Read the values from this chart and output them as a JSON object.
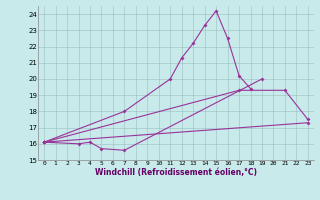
{
  "xlabel": "Windchill (Refroidissement éolien,°C)",
  "bg_color": "#c8eaea",
  "line_color": "#993399",
  "xlim": [
    -0.5,
    23.5
  ],
  "ylim": [
    15,
    24.5
  ],
  "yticks": [
    15,
    16,
    17,
    18,
    19,
    20,
    21,
    22,
    23,
    24
  ],
  "xticks": [
    0,
    1,
    2,
    3,
    4,
    5,
    6,
    7,
    8,
    9,
    10,
    11,
    12,
    13,
    14,
    15,
    16,
    17,
    18,
    19,
    20,
    21,
    22,
    23
  ],
  "series": [
    {
      "x": [
        0,
        7,
        11,
        12,
        13,
        14,
        15,
        16,
        17,
        18
      ],
      "y": [
        16.1,
        18.0,
        20.0,
        21.3,
        22.2,
        23.3,
        24.2,
        22.5,
        20.2,
        19.4
      ]
    },
    {
      "x": [
        0,
        3,
        4,
        5,
        7,
        19
      ],
      "y": [
        16.1,
        16.0,
        16.1,
        15.7,
        15.6,
        20.0
      ]
    },
    {
      "x": [
        0,
        17,
        21,
        23
      ],
      "y": [
        16.1,
        19.3,
        19.3,
        17.5
      ]
    },
    {
      "x": [
        0,
        23
      ],
      "y": [
        16.1,
        17.3
      ]
    }
  ]
}
